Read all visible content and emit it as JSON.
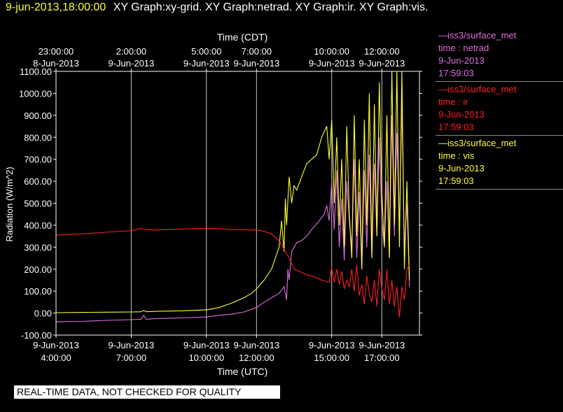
{
  "header": {
    "timestamp": "9-jun-2013,18:00:00",
    "graphs_label": "XY Graph:xy-grid.  XY Graph:netrad.  XY Graph:ir.  XY Graph:vis."
  },
  "legend": [
    {
      "line1": "—iss3/surface_met",
      "line2": "time : netrad",
      "line3": "9-Jun-2013",
      "line4": "17:59:03",
      "color": "#e070e0"
    },
    {
      "line1": "—iss3/surface_met",
      "line2": "time : ir",
      "line3": "9-Jun-2013",
      "line4": "17:59:03",
      "color": "#ff2020"
    },
    {
      "line1": "—iss3/surface_met",
      "line2": "time : vis",
      "line3": "9-Jun-2013",
      "line4": "17:59:03",
      "color": "#ffff33"
    }
  ],
  "qc_note": "REAL-TIME DATA, NOT CHECKED FOR QUALITY",
  "chart_data": {
    "type": "line",
    "title": "",
    "top_axis_label": "Time (CDT)",
    "xlabel": "Time (UTC)",
    "ylabel": "Radiation (W/m^2)",
    "ylim": [
      -100,
      1100
    ],
    "yticks": [
      "1100.00",
      "1000.00",
      "900.00",
      "800.00",
      "700.00",
      "600.00",
      "500.00",
      "400.00",
      "300.00",
      "200.00",
      "100.00",
      "0.00",
      "-100.00"
    ],
    "xlim_hours_utc": [
      4.0,
      18.5
    ],
    "bottom_ticks": [
      {
        "hour": 4,
        "date": "9-Jun-2013",
        "time": "4:00:00"
      },
      {
        "hour": 7,
        "date": "9-Jun-2013",
        "time": "7:00:00"
      },
      {
        "hour": 10,
        "date": "9-Jun-2013",
        "time": "10:00:00"
      },
      {
        "hour": 12,
        "date": "9-Jun-2013",
        "time": "12:00:00"
      },
      {
        "hour": 15,
        "date": "9-Jun-2013",
        "time": "15:00:00"
      },
      {
        "hour": 17,
        "date": "9-Jun-2013",
        "time": "17:00:00"
      }
    ],
    "top_ticks": [
      {
        "hour": 4,
        "time": "23:00:00",
        "date": "8-Jun-2013"
      },
      {
        "hour": 7,
        "time": "2:00:00",
        "date": "9-Jun-2013"
      },
      {
        "hour": 10,
        "time": "5:00:00",
        "date": "9-Jun-2013"
      },
      {
        "hour": 12,
        "time": "7:00:00",
        "date": "9-Jun-2013"
      },
      {
        "hour": 15,
        "time": "10:00:00",
        "date": "9-Jun-2013"
      },
      {
        "hour": 17,
        "time": "12:00:00",
        "date": "9-Jun-2013"
      }
    ],
    "grid": true,
    "series": [
      {
        "name": "netrad",
        "color": "#e070e0",
        "x": [
          4.0,
          5.0,
          6.0,
          7.0,
          7.4,
          7.5,
          7.6,
          8.0,
          9.0,
          10.0,
          10.5,
          11.0,
          11.5,
          12.0,
          12.3,
          12.6,
          12.9,
          13.1,
          13.2,
          13.25,
          13.3,
          13.4,
          13.5,
          13.6,
          13.8,
          14.0,
          14.2,
          14.5,
          14.7,
          14.8,
          14.9,
          15.0,
          15.1,
          15.2,
          15.3,
          15.4,
          15.5,
          15.6,
          15.7,
          15.8,
          15.9,
          16.0,
          16.1,
          16.2,
          16.3,
          16.4,
          16.5,
          16.6,
          16.7,
          16.8,
          16.9,
          17.0,
          17.1,
          17.2,
          17.3,
          17.4,
          17.5,
          17.6,
          17.7,
          17.8,
          17.9,
          18.0,
          18.1
        ],
        "y": [
          -40,
          -38,
          -33,
          -30,
          -28,
          -10,
          -28,
          -25,
          -22,
          -18,
          -10,
          -5,
          5,
          25,
          50,
          70,
          90,
          120,
          60,
          200,
          150,
          280,
          300,
          320,
          330,
          350,
          380,
          420,
          450,
          490,
          420,
          600,
          380,
          650,
          300,
          520,
          240,
          600,
          420,
          300,
          700,
          250,
          550,
          200,
          650,
          300,
          720,
          250,
          680,
          350,
          800,
          420,
          300,
          600,
          250,
          900,
          350,
          820,
          380,
          950,
          300,
          500,
          120
        ]
      },
      {
        "name": "ir",
        "color": "#ff2020",
        "x": [
          4.0,
          5.0,
          6.0,
          7.0,
          7.4,
          7.6,
          8.0,
          9.0,
          10.0,
          10.5,
          11.0,
          11.5,
          12.0,
          12.3,
          12.6,
          12.9,
          13.1,
          13.3,
          13.5,
          13.8,
          14.0,
          14.3,
          14.6,
          14.9,
          15.0,
          15.1,
          15.2,
          15.3,
          15.4,
          15.5,
          15.6,
          15.7,
          15.8,
          15.9,
          16.0,
          16.1,
          16.2,
          16.3,
          16.4,
          16.5,
          16.6,
          16.7,
          16.8,
          16.9,
          17.0,
          17.1,
          17.2,
          17.3,
          17.4,
          17.5,
          17.6,
          17.7,
          17.8,
          17.9,
          18.0,
          18.1
        ],
        "y": [
          355,
          360,
          368,
          375,
          385,
          380,
          378,
          382,
          386,
          384,
          380,
          379,
          378,
          372,
          360,
          330,
          290,
          250,
          200,
          185,
          175,
          165,
          150,
          140,
          210,
          140,
          200,
          130,
          190,
          110,
          150,
          120,
          200,
          100,
          220,
          80,
          130,
          40,
          170,
          90,
          50,
          150,
          30,
          200,
          110,
          60,
          200,
          40,
          150,
          30,
          120,
          -20,
          120,
          60,
          200,
          220
        ]
      },
      {
        "name": "vis",
        "color": "#ffff33",
        "x": [
          4.0,
          5.0,
          6.0,
          7.0,
          7.4,
          7.5,
          7.6,
          8.0,
          9.0,
          10.0,
          10.5,
          11.0,
          11.5,
          11.8,
          12.0,
          12.3,
          12.6,
          12.9,
          13.0,
          13.1,
          13.15,
          13.2,
          13.3,
          13.4,
          13.5,
          13.6,
          13.8,
          14.0,
          14.2,
          14.4,
          14.6,
          14.8,
          14.9,
          15.0,
          15.1,
          15.2,
          15.3,
          15.4,
          15.5,
          15.6,
          15.7,
          15.8,
          15.9,
          16.0,
          16.1,
          16.2,
          16.3,
          16.4,
          16.5,
          16.6,
          16.7,
          16.8,
          16.9,
          17.0,
          17.1,
          17.2,
          17.3,
          17.4,
          17.5,
          17.6,
          17.7,
          17.8,
          17.9,
          18.0,
          18.1
        ],
        "y": [
          2,
          3,
          4,
          5,
          6,
          12,
          6,
          8,
          10,
          15,
          25,
          45,
          70,
          90,
          110,
          150,
          200,
          300,
          420,
          280,
          520,
          400,
          620,
          500,
          580,
          560,
          620,
          680,
          700,
          720,
          800,
          850,
          700,
          880,
          500,
          800,
          400,
          700,
          300,
          850,
          450,
          250,
          900,
          350,
          700,
          200,
          880,
          400,
          1000,
          250,
          950,
          350,
          1050,
          550,
          300,
          900,
          250,
          1100,
          400,
          1100,
          300,
          1100,
          200,
          600,
          150
        ]
      }
    ]
  }
}
